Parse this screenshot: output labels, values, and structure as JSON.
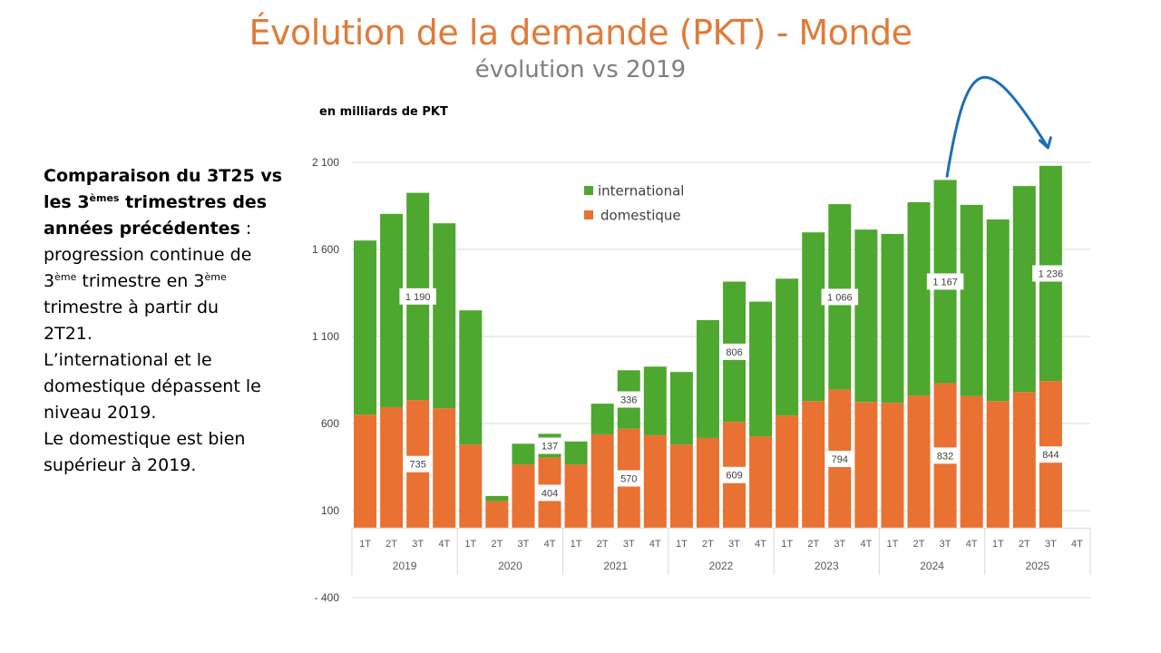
{
  "header": {
    "title": "Évolution de la demande (PKT) - Monde",
    "subtitle": "évolution vs 2019",
    "unit_label": "en milliards de PKT"
  },
  "commentary": {
    "line1": "Comparaison du 3T25 vs",
    "line2_a": "les 3",
    "line2_sup": "èmes",
    "line2_b": " trimestres des",
    "line3": "années précédentes",
    "line3_tail": " :",
    "line4": "progression continue de",
    "line5_a": "3",
    "line5_sup1": "ème",
    "line5_b": " trimestre en 3",
    "line5_sup2": "ème",
    "line6": "trimestre à partir du",
    "line7": "2T21.",
    "line8": "L’international et le",
    "line9": "domestique dépassent le",
    "line10": "niveau 2019.",
    "line11": "Le domestique est bien",
    "line12": "supérieur à 2019."
  },
  "colors": {
    "international": "#4ea72e",
    "domestique": "#e97132",
    "title": "#e07b39",
    "arrow": "#1f6fb5",
    "grid": "#d9d9d9"
  },
  "chart_data": {
    "type": "bar",
    "stacked": true,
    "title": "Évolution de la demande (PKT) - Monde",
    "subtitle": "évolution vs 2019",
    "ylabel": "en milliards de PKT",
    "xlabel": "",
    "ylim": [
      -400,
      2100
    ],
    "yticks": [
      -400,
      100,
      600,
      1100,
      1600,
      2100
    ],
    "ytick_labels": [
      "- 400",
      "100",
      "600",
      "1 100",
      "1 600",
      "2 100"
    ],
    "grid": true,
    "legend_position": "top-center",
    "years": [
      "2019",
      "2020",
      "2021",
      "2022",
      "2023",
      "2024",
      "2025"
    ],
    "quarters": [
      "1T",
      "2T",
      "3T",
      "4T"
    ],
    "categories": [
      "2019 1T",
      "2019 2T",
      "2019 3T",
      "2019 4T",
      "2020 1T",
      "2020 2T",
      "2020 3T",
      "2020 4T",
      "2021 1T",
      "2021 2T",
      "2021 3T",
      "2021 4T",
      "2022 1T",
      "2022 2T",
      "2022 3T",
      "2022 4T",
      "2023 1T",
      "2023 2T",
      "2023 3T",
      "2023 4T",
      "2024 1T",
      "2024 2T",
      "2024 3T",
      "2024 4T",
      "2025 1T",
      "2025 2T",
      "2025 3T",
      "2025 4T"
    ],
    "series": [
      {
        "name": "domestique",
        "color": "#e97132",
        "values": [
          651,
          694,
          735,
          688,
          479,
          155,
          365,
          404,
          365,
          538,
          570,
          533,
          479,
          517,
          609,
          526,
          646,
          729,
          794,
          724,
          719,
          760,
          832,
          757,
          729,
          781,
          844,
          null
        ]
      },
      {
        "name": "international",
        "color": "#4ea72e",
        "values": [
          1000,
          1110,
          1190,
          1062,
          771,
          29,
          119,
          137,
          132,
          176,
          336,
          394,
          417,
          677,
          806,
          774,
          786,
          969,
          1066,
          990,
          970,
          1111,
          1167,
          1099,
          1043,
          1183,
          1236,
          null
        ]
      }
    ],
    "data_labels": [
      {
        "category": "2019 3T",
        "series": "international",
        "text": "1 190"
      },
      {
        "category": "2019 3T",
        "series": "domestique",
        "text": "735"
      },
      {
        "category": "2020 4T",
        "series": "international",
        "text": "137"
      },
      {
        "category": "2020 4T",
        "series": "domestique",
        "text": "404"
      },
      {
        "category": "2021 3T",
        "series": "international",
        "text": "336"
      },
      {
        "category": "2021 3T",
        "series": "domestique",
        "text": "570"
      },
      {
        "category": "2022 3T",
        "series": "international",
        "text": "806"
      },
      {
        "category": "2022 3T",
        "series": "domestique",
        "text": "609"
      },
      {
        "category": "2023 3T",
        "series": "international",
        "text": "1 066"
      },
      {
        "category": "2023 3T",
        "series": "domestique",
        "text": "794"
      },
      {
        "category": "2024 3T",
        "series": "international",
        "text": "1 167"
      },
      {
        "category": "2024 3T",
        "series": "domestique",
        "text": "832"
      },
      {
        "category": "2025 3T",
        "series": "international",
        "text": "1 236"
      },
      {
        "category": "2025 3T",
        "series": "domestique",
        "text": "844"
      }
    ],
    "annotations": [
      {
        "type": "arrow",
        "from": "2024 3T",
        "to": "2025 3T"
      }
    ],
    "legend": [
      {
        "label": "international",
        "color": "#4ea72e"
      },
      {
        "label": "domestique",
        "color": "#e97132"
      }
    ]
  }
}
